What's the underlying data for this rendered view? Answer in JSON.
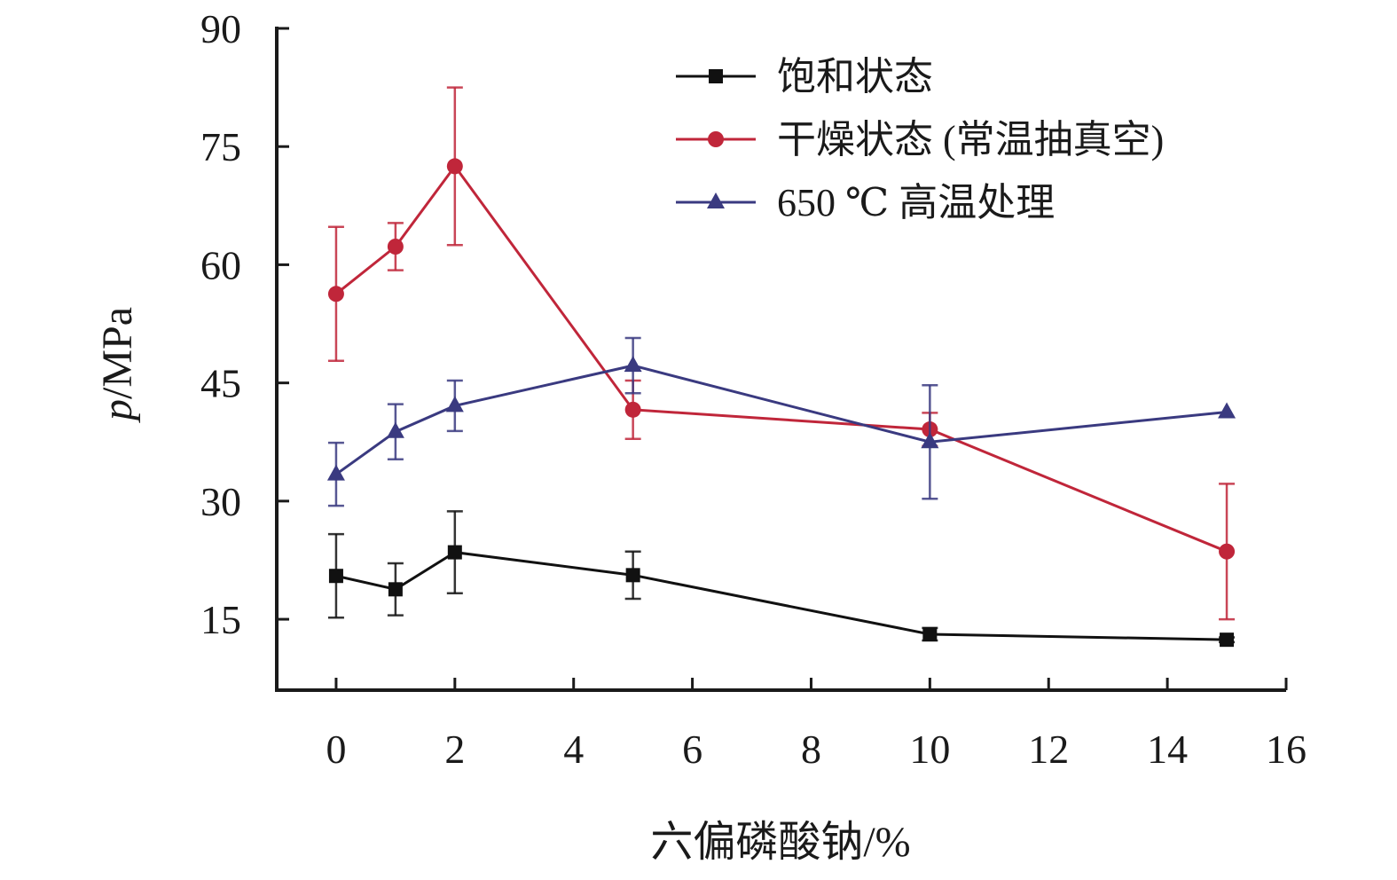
{
  "chart_data": {
    "type": "line",
    "xlabel": "六偏磷酸钠/%",
    "ylabel_italic": "p",
    "ylabel_rest": "/MPa",
    "xlim": [
      -1,
      16
    ],
    "ylim": [
      6,
      90
    ],
    "xticks": [
      0,
      2,
      4,
      6,
      8,
      10,
      12,
      14,
      16
    ],
    "yticks": [
      15,
      30,
      45,
      60,
      75,
      90
    ],
    "legend_position": "top-right",
    "series": [
      {
        "name": "饱和状态",
        "color": "#111111",
        "marker": "square",
        "x": [
          0,
          1,
          2,
          5,
          10,
          15
        ],
        "y": [
          20.5,
          18.8,
          23.5,
          20.6,
          13.1,
          12.4
        ],
        "err": [
          5.3,
          3.3,
          5.2,
          3.0,
          0.8,
          0.3
        ]
      },
      {
        "name": "干燥状态 (常温抽真空)",
        "color": "#c0263a",
        "marker": "circle",
        "x": [
          0,
          1,
          2,
          5,
          10,
          15
        ],
        "y": [
          56.3,
          62.3,
          72.5,
          41.6,
          39.1,
          23.6
        ],
        "err": [
          8.5,
          3.0,
          10.0,
          3.7,
          2.1,
          8.6
        ]
      },
      {
        "name": "650 ℃ 高温处理",
        "color": "#3a3a80",
        "marker": "triangle",
        "x": [
          0,
          1,
          2,
          5,
          10,
          15
        ],
        "y": [
          33.4,
          38.8,
          42.1,
          47.2,
          37.5,
          41.3
        ],
        "err": [
          4.0,
          3.5,
          3.2,
          3.5,
          7.2,
          0.0
        ]
      }
    ]
  }
}
